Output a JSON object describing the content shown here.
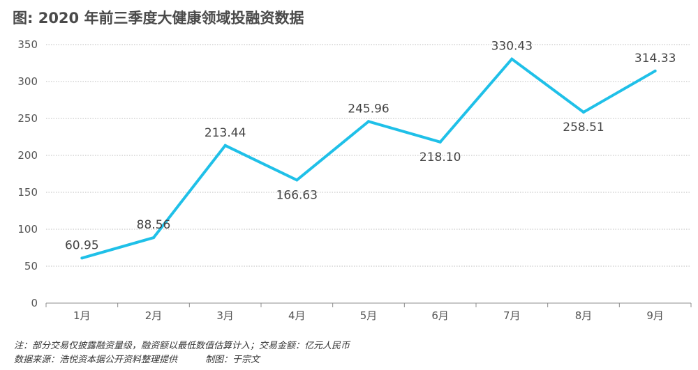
{
  "chart_data": {
    "type": "line",
    "title": "图: 2020 年前三季度大健康领域投融资数据",
    "categories": [
      "1月",
      "2月",
      "3月",
      "4月",
      "5月",
      "6月",
      "7月",
      "8月",
      "9月"
    ],
    "values": [
      60.95,
      88.56,
      213.44,
      166.63,
      245.96,
      218.1,
      330.43,
      258.51,
      314.33
    ],
    "value_labels": [
      "60.95",
      "88.56",
      "213.44",
      "166.63",
      "245.96",
      "218.10",
      "330.43",
      "258.51",
      "314.33"
    ],
    "yticks": [
      "0",
      "50",
      "100",
      "150",
      "200",
      "250",
      "300",
      "350"
    ],
    "ylim": [
      0,
      350
    ],
    "grid": "horizontal dotted",
    "line_color": "#1fc0e8",
    "xlabel": "",
    "ylabel": ""
  },
  "notes": {
    "note": "注：部分交易仅披露融资量级，融资额以最低数值估算计入；交易金额：亿元人民币",
    "source": "数据来源：浩悦资本据公开资料整理提供",
    "author": "制图：于宗文"
  }
}
